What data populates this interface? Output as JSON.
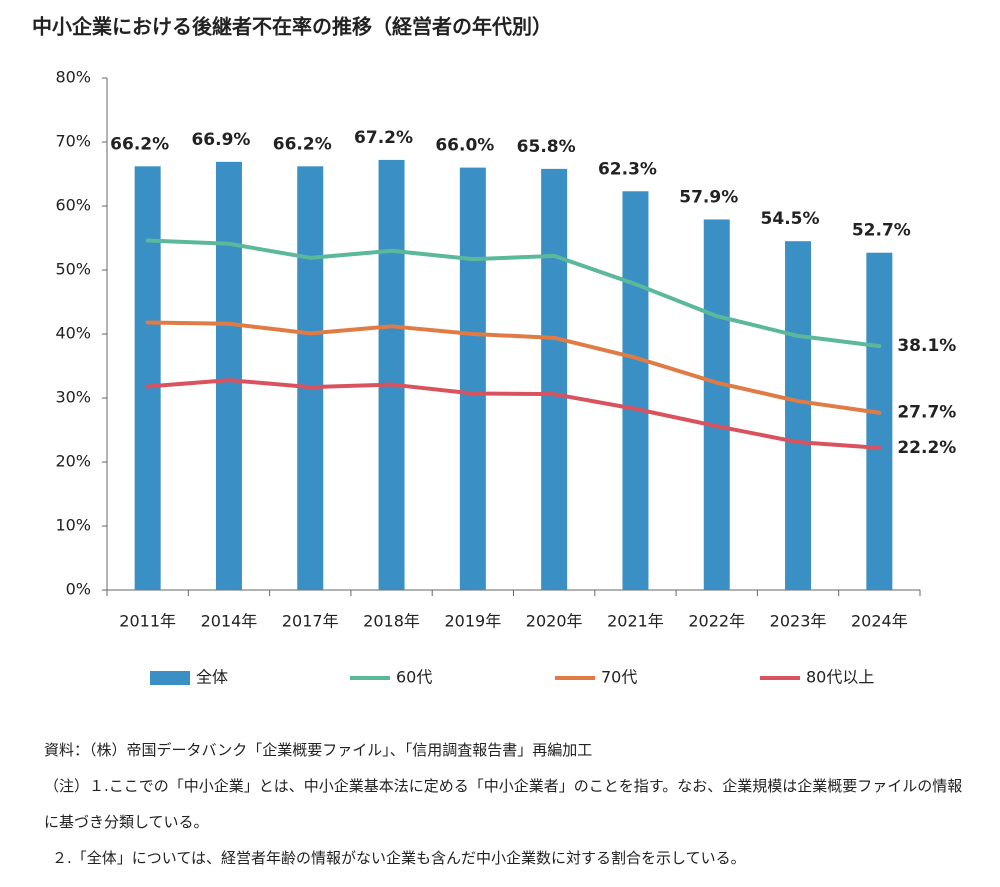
{
  "chart_data": {
    "type": "bar",
    "title": "中小企業における後継者不在率の推移（経営者の年代別）",
    "categories": [
      "2011年",
      "2014年",
      "2017年",
      "2018年",
      "2019年",
      "2020年",
      "2021年",
      "2022年",
      "2023年",
      "2024年"
    ],
    "series": [
      {
        "name": "全体",
        "type": "bar",
        "color": "#3a8fc4",
        "values": [
          66.2,
          66.9,
          66.2,
          67.2,
          66.0,
          65.8,
          62.3,
          57.9,
          54.5,
          52.7
        ],
        "value_labels": [
          "66.2%",
          "66.9%",
          "66.2%",
          "67.2%",
          "66.0%",
          "65.8%",
          "62.3%",
          "57.9%",
          "54.5%",
          "52.7%"
        ]
      },
      {
        "name": "60代",
        "type": "line",
        "color": "#5bb89a",
        "values": [
          54.6,
          54.1,
          51.9,
          53.0,
          51.7,
          52.2,
          47.8,
          42.8,
          39.7,
          38.1
        ],
        "value_labels": [
          null,
          null,
          null,
          null,
          null,
          null,
          null,
          null,
          null,
          "38.1%"
        ]
      },
      {
        "name": "70代",
        "type": "line",
        "color": "#e07b45",
        "values": [
          41.8,
          41.6,
          40.1,
          41.2,
          40.0,
          39.4,
          36.3,
          32.4,
          29.5,
          27.7
        ],
        "value_labels": [
          null,
          null,
          null,
          null,
          null,
          null,
          null,
          null,
          null,
          "27.7%"
        ]
      },
      {
        "name": "80代以上",
        "type": "line",
        "color": "#d9535f",
        "values": [
          31.8,
          32.8,
          31.7,
          32.1,
          30.7,
          30.6,
          28.3,
          25.6,
          23.1,
          22.2
        ],
        "value_labels": [
          null,
          null,
          null,
          null,
          null,
          null,
          null,
          null,
          null,
          "22.2%"
        ]
      }
    ],
    "ylim": [
      0,
      80
    ],
    "yticks": [
      {
        "value": 0,
        "label": "0%"
      },
      {
        "value": 10,
        "label": "10%"
      },
      {
        "value": 20,
        "label": "20%"
      },
      {
        "value": 30,
        "label": "30%"
      },
      {
        "value": 40,
        "label": "40%"
      },
      {
        "value": 50,
        "label": "50%"
      },
      {
        "value": 60,
        "label": "60%"
      },
      {
        "value": 70,
        "label": "70%"
      },
      {
        "value": 80,
        "label": "80%"
      }
    ],
    "grid": false,
    "legend": "bottom",
    "source": "資料：（株）帝国データバンク「企業概要ファイル」、「信用調査報告書」再編加工",
    "notes": [
      "（注）１.ここでの「中小企業」とは、中小企業基本法に定める「中小企業者」のことを指す。なお、企業規模は企業概要ファイルの情報に基づき分類している。",
      "２.「全体」については、経営者年齢の情報がない企業も含んだ中小企業数に対する割合を示している。"
    ]
  }
}
